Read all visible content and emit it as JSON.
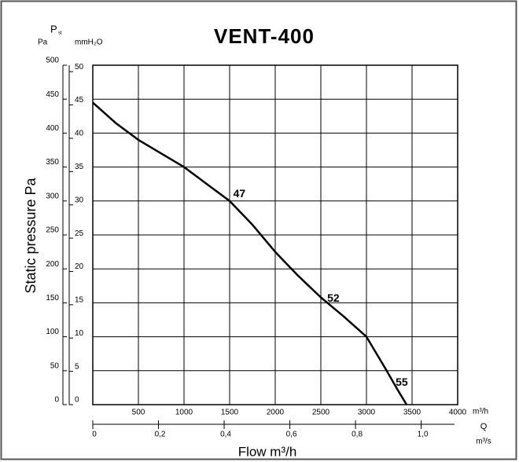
{
  "chart_data": {
    "type": "line",
    "title": "VENT-400",
    "y_symbol": "P",
    "y_symbol_sub": "st",
    "y_unit": "Pa",
    "y2_unit": "mmH₂O",
    "ylabel": "Static pressure  Pa",
    "xlabel": "Flow  m³/h",
    "x_unit": "m³/h",
    "x2_symbol": "Q",
    "x2_unit": "m³/s",
    "x": [
      0,
      250,
      500,
      750,
      1000,
      1250,
      1500,
      1750,
      2000,
      2250,
      2500,
      2750,
      3000,
      3200,
      3350,
      3440
    ],
    "series": [
      {
        "name": "VENT-400",
        "color": "#000000",
        "values": [
          445,
          415,
          390,
          370,
          350,
          325,
          300,
          265,
          225,
          190,
          158,
          130,
          100,
          55,
          20,
          0
        ]
      }
    ],
    "annotations": [
      {
        "text": "47",
        "x": 1540,
        "y": 310
      },
      {
        "text": "52",
        "x": 2570,
        "y": 156
      },
      {
        "text": "55",
        "x": 3320,
        "y": 32
      }
    ],
    "xlim": [
      0,
      4000
    ],
    "xticks": [
      500,
      1000,
      1500,
      2000,
      2500,
      3000,
      3500,
      4000
    ],
    "ylim": [
      0,
      500
    ],
    "yticks": [
      0,
      50,
      100,
      150,
      200,
      250,
      300,
      350,
      400,
      450,
      500
    ],
    "y2lim": [
      0,
      50.97
    ],
    "y2ticks": [
      0,
      5,
      10,
      15,
      20,
      25,
      30,
      35,
      40,
      45,
      50
    ],
    "x2lim": [
      0,
      1.1111
    ],
    "x2ticks": [
      0,
      {
        "value": 0.2,
        "label": "0,2"
      },
      {
        "value": 0.4,
        "label": "0,4"
      },
      {
        "value": 0.6,
        "label": "0,6"
      },
      {
        "value": 0.8,
        "label": "0,8"
      },
      {
        "value": 1.0,
        "label": "1,0"
      }
    ],
    "grid": true
  }
}
